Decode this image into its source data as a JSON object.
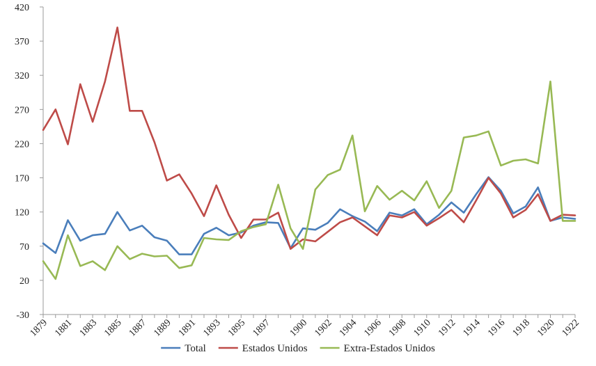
{
  "chart_data": {
    "type": "line",
    "title": "",
    "xlabel": "",
    "ylabel": "",
    "ylim": [
      -30,
      420
    ],
    "y_ticks": [
      -30,
      20,
      70,
      120,
      170,
      220,
      270,
      320,
      370,
      420
    ],
    "x_tick_labels": [
      "1879",
      "1881",
      "1883",
      "1885",
      "1887",
      "1889",
      "1891",
      "1893",
      "1895",
      "1897",
      "1900",
      "1902",
      "1904",
      "1906",
      "1908",
      "1910",
      "1912",
      "1914",
      "1916",
      "1918",
      "1920",
      "1922"
    ],
    "x": [
      "1879",
      "1880",
      "1881",
      "1882",
      "1883",
      "1884",
      "1885",
      "1886",
      "1887",
      "1888",
      "1889",
      "1890",
      "1891",
      "1892",
      "1893",
      "1894",
      "1895",
      "1896",
      "1897",
      "1898",
      "1899",
      "1900",
      "1901",
      "1902",
      "1903",
      "1904",
      "1905",
      "1906",
      "1907",
      "1908",
      "1909",
      "1910",
      "1911",
      "1912",
      "1913",
      "1914",
      "1915",
      "1916",
      "1917",
      "1918",
      "1919",
      "1920",
      "1921",
      "1922"
    ],
    "grid": false,
    "legend_position": "bottom",
    "series": [
      {
        "name": "Total",
        "color": "#4a7ebb",
        "values": [
          74,
          60,
          108,
          78,
          86,
          88,
          120,
          93,
          100,
          83,
          78,
          58,
          58,
          88,
          97,
          86,
          90,
          100,
          105,
          104,
          67,
          96,
          94,
          104,
          124,
          114,
          106,
          92,
          119,
          115,
          124,
          102,
          116,
          134,
          119,
          146,
          171,
          151,
          118,
          128,
          156,
          107,
          112,
          110
        ]
      },
      {
        "name": "Estados Unidos",
        "color": "#be4b48",
        "values": [
          240,
          270,
          219,
          307,
          252,
          311,
          390,
          268,
          268,
          222,
          166,
          175,
          147,
          114,
          159,
          116,
          82,
          109,
          109,
          119,
          66,
          80,
          77,
          91,
          105,
          112,
          99,
          86,
          115,
          112,
          120,
          100,
          111,
          123,
          105,
          137,
          170,
          147,
          112,
          123,
          146,
          107,
          116,
          115
        ]
      },
      {
        "name": "Extra-Estados Unidos",
        "color": "#98b954",
        "values": [
          48,
          22,
          86,
          41,
          48,
          35,
          70,
          51,
          59,
          55,
          56,
          38,
          42,
          82,
          80,
          79,
          92,
          98,
          102,
          160,
          96,
          66,
          153,
          174,
          182,
          232,
          121,
          158,
          138,
          151,
          137,
          165,
          126,
          151,
          229,
          232,
          238,
          188,
          195,
          197,
          191,
          311,
          107,
          107
        ]
      }
    ]
  }
}
